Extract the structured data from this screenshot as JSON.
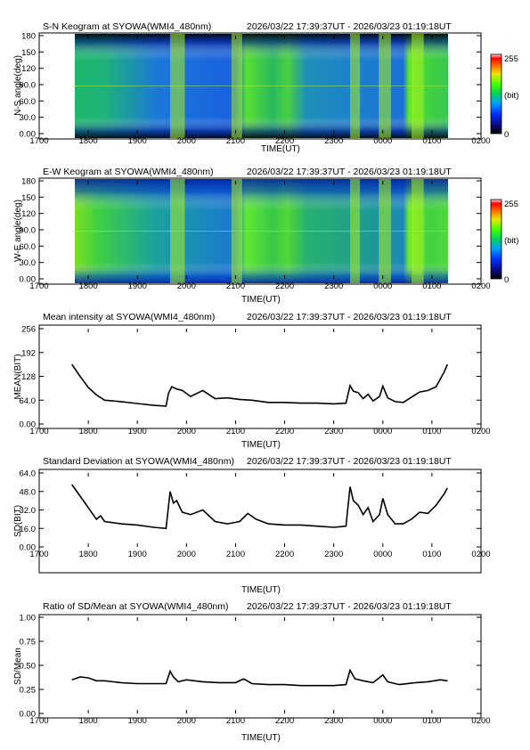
{
  "range": "2026/03/22 17:39:37UT - 2026/03/23 01:19:18UT",
  "colorbar": {
    "max": "255",
    "mid": "(bit)",
    "min": "0"
  },
  "x_ticks": [
    "1700",
    "1800",
    "1900",
    "2000",
    "2100",
    "2200",
    "2300",
    "0000",
    "0100",
    "0200"
  ],
  "x_label": "TIME(UT)",
  "panels": {
    "sn": {
      "title": "S-N Keogram at SYOWA(WMI4_480nm)",
      "ylabel": "N-S angle(deg)",
      "yticks": [
        "180",
        "150",
        "120",
        "90.0",
        "60.0",
        "30.0",
        "0.00"
      ]
    },
    "ew": {
      "title": "E-W Keogram at SYOWA(WMI4_480nm)",
      "ylabel": "W-E angle(deg)",
      "yticks": [
        "180",
        "150",
        "120",
        "90.0",
        "60.0",
        "30.0",
        "0.00"
      ]
    },
    "mean": {
      "title": "Mean intensity at SYOWA(WMI4_480nm)",
      "ylabel": "MEAN(BIT)",
      "yticks": [
        "256",
        "192",
        "128",
        "64.0",
        "0.00"
      ]
    },
    "sd": {
      "title": "Standard Deviation at SYOWA(WMI4_480nm)",
      "ylabel": "SD(BIT)",
      "yticks": [
        "64.0",
        "48.0",
        "32.0",
        "16.0",
        "0.00"
      ]
    },
    "ratio": {
      "title": "Ratio of SD/Mean at SYOWA(WMI4_480nm)",
      "ylabel": "SD/Mean",
      "yticks": [
        "1.00",
        "0.75",
        "0.50",
        "0.25",
        "0.00"
      ]
    }
  },
  "chart_data": [
    {
      "type": "heatmap",
      "title": "S-N Keogram at SYOWA(WMI4_480nm)",
      "xlabel": "TIME(UT)",
      "ylabel": "N-S angle(deg)",
      "xlim": [
        "1700",
        "0200"
      ],
      "ylim": [
        0,
        180
      ],
      "color_range": [
        0,
        255
      ],
      "colorbar_unit": "(bit)",
      "data_span": [
        "17:39:37",
        "01:19:18"
      ],
      "bright_bands_ut": [
        [
          "19:40",
          "19:58"
        ],
        [
          "20:55",
          "21:08"
        ],
        [
          "23:20",
          "23:32"
        ],
        [
          "23:55",
          "00:10"
        ],
        [
          "00:35",
          "00:50"
        ]
      ]
    },
    {
      "type": "heatmap",
      "title": "E-W Keogram at SYOWA(WMI4_480nm)",
      "xlabel": "TIME(UT)",
      "ylabel": "W-E angle(deg)",
      "xlim": [
        "1700",
        "0200"
      ],
      "ylim": [
        0,
        180
      ],
      "color_range": [
        0,
        255
      ],
      "colorbar_unit": "(bit)",
      "data_span": [
        "17:39:37",
        "01:19:18"
      ],
      "bright_bands_ut": [
        [
          "19:40",
          "19:58"
        ],
        [
          "20:55",
          "21:08"
        ],
        [
          "23:20",
          "23:32"
        ],
        [
          "23:55",
          "00:10"
        ],
        [
          "00:35",
          "00:50"
        ]
      ]
    },
    {
      "type": "line",
      "title": "Mean intensity at SYOWA(WMI4_480nm)",
      "xlabel": "TIME(UT)",
      "ylabel": "MEAN(BIT)",
      "ylim": [
        0,
        256
      ],
      "x": [
        "17:40",
        "17:50",
        "18:00",
        "18:10",
        "18:20",
        "18:40",
        "19:00",
        "19:20",
        "19:35",
        "19:38",
        "19:42",
        "19:48",
        "19:55",
        "20:05",
        "20:20",
        "20:35",
        "20:50",
        "21:05",
        "21:20",
        "21:40",
        "22:00",
        "22:20",
        "22:40",
        "23:00",
        "23:15",
        "23:20",
        "23:24",
        "23:30",
        "23:36",
        "23:42",
        "23:48",
        "23:56",
        "00:00",
        "00:06",
        "00:15",
        "00:25",
        "00:35",
        "00:45",
        "00:55",
        "01:05",
        "01:15",
        "01:19"
      ],
      "y": [
        160,
        128,
        98,
        78,
        64,
        60,
        55,
        50,
        48,
        82,
        100,
        94,
        90,
        74,
        90,
        68,
        70,
        66,
        64,
        58,
        58,
        56,
        56,
        54,
        56,
        103,
        88,
        84,
        68,
        80,
        62,
        74,
        102,
        70,
        60,
        58,
        72,
        86,
        90,
        100,
        140,
        160
      ]
    },
    {
      "type": "line",
      "title": "Standard Deviation at SYOWA(WMI4_480nm)",
      "xlabel": "TIME(UT)",
      "ylabel": "SD(BIT)",
      "ylim": [
        0,
        64
      ],
      "x": [
        "17:40",
        "17:50",
        "18:00",
        "18:10",
        "18:15",
        "18:20",
        "18:40",
        "19:00",
        "19:20",
        "19:35",
        "19:40",
        "19:44",
        "19:48",
        "19:55",
        "20:05",
        "20:20",
        "20:35",
        "20:50",
        "21:05",
        "21:15",
        "21:25",
        "21:40",
        "22:00",
        "22:20",
        "22:40",
        "23:00",
        "23:15",
        "23:20",
        "23:24",
        "23:30",
        "23:36",
        "23:42",
        "23:48",
        "23:56",
        "00:00",
        "00:06",
        "00:15",
        "00:25",
        "00:35",
        "00:45",
        "00:55",
        "01:05",
        "01:15",
        "01:19"
      ],
      "y": [
        54,
        44,
        34,
        24,
        27,
        22,
        20,
        19,
        17,
        16,
        48,
        38,
        40,
        30,
        28,
        32,
        22,
        20,
        22,
        29,
        24,
        20,
        19,
        19,
        18,
        17,
        18,
        52,
        40,
        36,
        28,
        34,
        22,
        28,
        42,
        28,
        20,
        20,
        24,
        30,
        29,
        36,
        46,
        51
      ]
    },
    {
      "type": "line",
      "title": "Ratio of SD/Mean at SYOWA(WMI4_480nm)",
      "xlabel": "TIME(UT)",
      "ylabel": "SD/Mean",
      "ylim": [
        0,
        1
      ],
      "x": [
        "17:40",
        "17:50",
        "18:00",
        "18:10",
        "18:20",
        "18:40",
        "19:00",
        "19:20",
        "19:35",
        "19:40",
        "19:44",
        "19:50",
        "20:00",
        "20:20",
        "20:40",
        "21:00",
        "21:10",
        "21:20",
        "21:40",
        "22:00",
        "22:20",
        "22:40",
        "23:00",
        "23:15",
        "23:20",
        "23:26",
        "23:36",
        "23:48",
        "00:00",
        "00:06",
        "00:20",
        "00:40",
        "00:55",
        "01:10",
        "01:19"
      ],
      "y": [
        0.35,
        0.38,
        0.37,
        0.34,
        0.34,
        0.32,
        0.31,
        0.31,
        0.31,
        0.44,
        0.38,
        0.33,
        0.35,
        0.33,
        0.32,
        0.32,
        0.36,
        0.31,
        0.3,
        0.3,
        0.29,
        0.29,
        0.29,
        0.3,
        0.45,
        0.36,
        0.34,
        0.32,
        0.4,
        0.33,
        0.3,
        0.32,
        0.33,
        0.35,
        0.34
      ]
    }
  ]
}
